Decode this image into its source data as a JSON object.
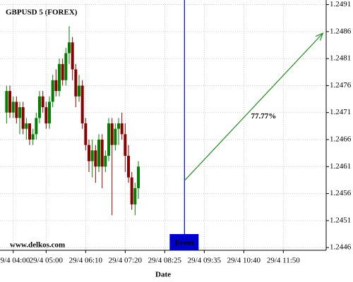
{
  "chart_data": {
    "type": "candlestick",
    "title": "GBPUSD 5 (FOREX)",
    "watermark": "www.delkos.com",
    "x_label": "Date",
    "x": [
      0,
      1,
      2,
      3,
      4,
      5,
      6,
      7,
      8,
      9,
      10,
      11,
      12,
      13,
      14,
      15,
      16,
      17,
      18,
      19,
      20,
      21,
      22,
      23,
      24,
      25,
      26,
      27,
      28,
      29,
      30,
      31,
      32,
      33,
      34,
      35,
      36,
      37,
      38,
      39,
      40
    ],
    "open": [
      1.2471,
      1.2475,
      1.2471,
      1.2473,
      1.247,
      1.2472,
      1.2468,
      1.2469,
      1.2466,
      1.2467,
      1.247,
      1.2474,
      1.2472,
      1.2469,
      1.2473,
      1.2477,
      1.2475,
      1.248,
      1.2477,
      1.2482,
      1.2484,
      1.2479,
      1.2474,
      1.2476,
      1.2469,
      1.2465,
      1.2462,
      1.2464,
      1.2461,
      1.2466,
      1.2461,
      1.2463,
      1.2469,
      1.2465,
      1.2468,
      1.2469,
      1.2467,
      1.2463,
      1.2459,
      1.2454,
      1.2457
    ],
    "high": [
      1.2476,
      1.2476,
      1.2474,
      1.2474,
      1.2473,
      1.2473,
      1.247,
      1.2469,
      1.2468,
      1.2471,
      1.2475,
      1.2475,
      1.2473,
      1.2474,
      1.2478,
      1.2479,
      1.2481,
      1.2481,
      1.2483,
      1.2487,
      1.2485,
      1.248,
      1.2478,
      1.2477,
      1.247,
      1.2466,
      1.2466,
      1.2465,
      1.2467,
      1.2467,
      1.2464,
      1.247,
      1.247,
      1.2469,
      1.247,
      1.2471,
      1.2469,
      1.2465,
      1.246,
      1.2458,
      1.2462
    ],
    "low": [
      1.2469,
      1.247,
      1.247,
      1.2469,
      1.2467,
      1.2467,
      1.2466,
      1.2465,
      1.2465,
      1.2466,
      1.2469,
      1.2471,
      1.2468,
      1.2468,
      1.2472,
      1.2474,
      1.2474,
      1.2476,
      1.2476,
      1.248,
      1.2477,
      1.2472,
      1.2473,
      1.2468,
      1.2464,
      1.246,
      1.2459,
      1.2458,
      1.246,
      1.2457,
      1.246,
      1.2462,
      1.2452,
      1.2464,
      1.2465,
      1.2466,
      1.246,
      1.2458,
      1.2453,
      1.2452,
      1.2455
    ],
    "close": [
      1.2475,
      1.2471,
      1.2473,
      1.247,
      1.2472,
      1.2468,
      1.2469,
      1.2466,
      1.2467,
      1.247,
      1.2474,
      1.2472,
      1.2469,
      1.2473,
      1.2477,
      1.2475,
      1.248,
      1.2477,
      1.2482,
      1.2484,
      1.2479,
      1.2474,
      1.2476,
      1.2469,
      1.2465,
      1.2462,
      1.2464,
      1.2461,
      1.2466,
      1.2461,
      1.2463,
      1.2469,
      1.2465,
      1.2468,
      1.2469,
      1.2467,
      1.2463,
      1.2459,
      1.2454,
      1.2457,
      1.2461
    ],
    "up_color": "#008000",
    "down_color": "#8b0000",
    "xlim": [
      -2,
      97
    ],
    "ylim": [
      1.24455,
      1.24912
    ],
    "xticks": [
      {
        "value": 2,
        "label": "29/4 04:00"
      },
      {
        "value": 12,
        "label": "29/4 05:00"
      },
      {
        "value": 24,
        "label": "29/4 06:10"
      },
      {
        "value": 36,
        "label": "29/4 07:20"
      },
      {
        "value": 48,
        "label": "29/4 08:25"
      },
      {
        "value": 60,
        "label": "29/4 09:35"
      },
      {
        "value": 72,
        "label": "29/4 10:40"
      },
      {
        "value": 84,
        "label": "29/4 11:50"
      }
    ],
    "yticks": [
      1.2446,
      1.2451,
      1.2456,
      1.2461,
      1.2466,
      1.2471,
      1.2476,
      1.2481,
      1.2486,
      1.2491
    ],
    "grid": true,
    "event": {
      "label": "Event",
      "x": 54,
      "color": "#0000cc"
    },
    "projection": {
      "text": "77.77%",
      "x0": 54,
      "y0": 1.24584,
      "x1": 96,
      "y1": 1.24857,
      "color": "#228b22"
    }
  }
}
